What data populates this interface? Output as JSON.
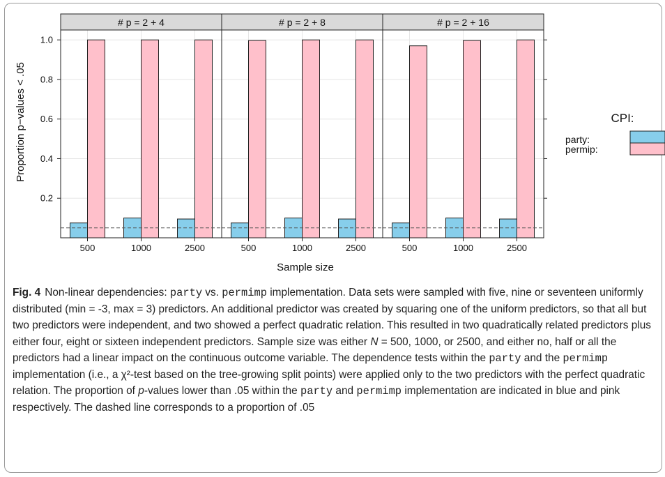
{
  "chart_data": {
    "type": "bar",
    "panels": [
      {
        "title": "# p = 2 + 4",
        "categories": [
          "500",
          "1000",
          "2500"
        ],
        "series": [
          {
            "name": "party",
            "values": [
              0.075,
              0.1,
              0.095
            ]
          },
          {
            "name": "permip",
            "values": [
              1.0,
              1.0,
              1.0
            ]
          }
        ]
      },
      {
        "title": "# p = 2 + 8",
        "categories": [
          "500",
          "1000",
          "2500"
        ],
        "series": [
          {
            "name": "party",
            "values": [
              0.075,
              0.1,
              0.095
            ]
          },
          {
            "name": "permip",
            "values": [
              0.997,
              1.0,
              1.0
            ]
          }
        ]
      },
      {
        "title": "# p = 2 + 16",
        "categories": [
          "500",
          "1000",
          "2500"
        ],
        "series": [
          {
            "name": "party",
            "values": [
              0.075,
              0.1,
              0.095
            ]
          },
          {
            "name": "permip",
            "values": [
              0.97,
              0.997,
              1.0
            ]
          }
        ]
      }
    ],
    "xlabel": "Sample size",
    "ylabel": "Proportion p−values < .05",
    "yticks": [
      "0.2",
      "0.4",
      "0.6",
      "0.8",
      "1.0"
    ],
    "ylim": [
      0,
      1.05
    ],
    "reference_line": 0.05,
    "legend": {
      "title": "CPI:",
      "placement": "right",
      "entries": [
        {
          "label": "party:",
          "color": "#87ceeb"
        },
        {
          "label": "permip:",
          "color": "#ffc0cb"
        }
      ]
    },
    "grid": true
  },
  "caption": {
    "label": "Fig. 4",
    "t1": "Non-linear dependencies: ",
    "party": "party",
    "vs": " vs. ",
    "permimp": "permimp",
    "t2": " implementation. Data sets were sampled with five, nine or seventeen uniformly distributed (min = -3, max = 3) predictors. An additional predictor was created by squaring one of the uniform predictors, so that all but two predictors were independent, and two showed a perfect quadratic relation. This resulted in two quadratically related predictors plus either four, eight or sixteen independent predictors. Sample size was either ",
    "n_sym": "N",
    "t3": " = 500, 1000, or 2500, and either no, half or all the predictors had a linear impact on the continuous outcome variable. The dependence tests within the ",
    "t4": " and the ",
    "t5": " implementation (i.e., a χ²-test based on the tree-growing split points) were applied only to the two predictors with the perfect quadratic relation. The proportion of ",
    "p_sym": "p",
    "t6": "-values lower than .05 within the ",
    "t7": " and ",
    "t8": " implementation are indicated in blue and pink respectively. The dashed line corresponds to a proportion of .05"
  },
  "colors": {
    "party": "#87ceeb",
    "permip": "#ffc0cb",
    "strip": "#d9d9d9",
    "grid": "#e6e6e6",
    "axis": "#222222"
  }
}
